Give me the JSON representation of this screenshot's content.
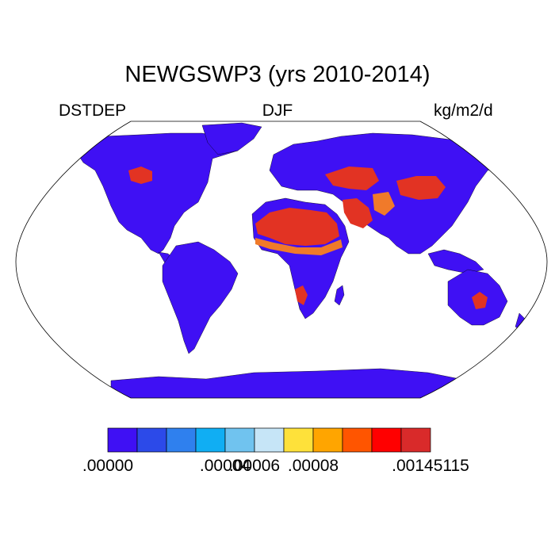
{
  "title": "NEWGSWP3 (yrs 2010-2014)",
  "left_label": "DSTDEP",
  "center_label": "DJF",
  "right_label": "kg/m2/d",
  "colorbar": {
    "colors": [
      "#3f10f4",
      "#2c4ae9",
      "#2f80ee",
      "#10aef3",
      "#70c3ef",
      "#c6e5f7",
      "#fee13a",
      "#ffa500",
      "#ff5500",
      "#ff0000",
      "#d92a2a"
    ],
    "tick_labels": [
      ".00000",
      ".00004",
      ".00006",
      ".00008",
      ".00145115"
    ],
    "tick_boundaries": [
      0,
      4,
      5,
      7,
      11
    ]
  },
  "map": {
    "projection": "Robinson",
    "land_color": "#3f10f4",
    "ocean_color": "#ffffff",
    "high_color": "#e23323",
    "mid_color": "#f07a2a"
  }
}
